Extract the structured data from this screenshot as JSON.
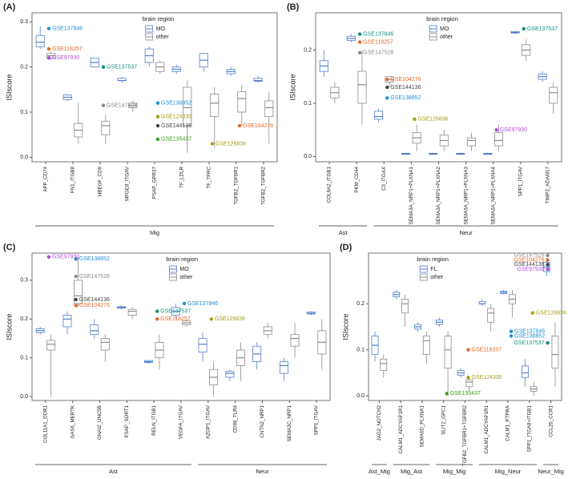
{
  "chart_data": [
    {
      "type": "box",
      "panel_label": "(A)",
      "y_label": "ISIscore",
      "legend_title": "brain region",
      "ylim": [
        -0.01,
        0.32
      ],
      "yticks": [
        {
          "value": 0,
          "label": "0.0"
        },
        0.1,
        0.2,
        0.3
      ],
      "categories": [
        "APP_CD74",
        "FN1_ITGB8",
        "HBEGF_CD9",
        "MFGE8_ITGAV",
        "PSAP_GPR37",
        "TF_LDLR",
        "TF_TFRC",
        "TGFB2_TGFBR1",
        "TGFB2_TGFBR2"
      ],
      "groups": [
        {
          "name": "Mig",
          "size": 9
        }
      ],
      "series": [
        {
          "name": "MO",
          "color": "#4f7fd0",
          "boxes": [
            [
              0.24,
              0.245,
              0.255,
              0.27,
              0.29
            ],
            [
              0.125,
              0.128,
              0.133,
              0.138,
              0.14
            ],
            [
              0.2,
              0.2,
              0.21,
              0.22,
              0.22
            ],
            [
              0.165,
              0.17,
              0.17,
              0.175,
              0.178
            ],
            [
              0.2,
              0.21,
              0.225,
              0.24,
              0.245
            ],
            [
              0.185,
              0.19,
              0.195,
              0.2,
              0.205
            ],
            [
              0.19,
              0.2,
              0.215,
              0.23,
              0.23
            ],
            [
              0.18,
              0.185,
              0.19,
              0.195,
              0.2
            ],
            [
              0.165,
              0.168,
              0.17,
              0.175,
              0.18
            ]
          ]
        },
        {
          "name": "other",
          "color": "#8c8c8c",
          "boxes": [
            [
              0.215,
              0.22,
              0.225,
              0.23,
              0.235
            ],
            [
              0.03,
              0.045,
              0.06,
              0.075,
              0.12
            ],
            [
              0.03,
              0.05,
              0.07,
              0.08,
              0.095
            ],
            [
              0.1,
              0.11,
              0.115,
              0.12,
              0.125
            ],
            [
              0.185,
              0.19,
              0.2,
              0.21,
              0.215
            ],
            [
              0.01,
              0.07,
              0.11,
              0.155,
              0.17
            ],
            [
              0.02,
              0.09,
              0.12,
              0.14,
              0.155
            ],
            [
              0.07,
              0.1,
              0.13,
              0.145,
              0.16
            ],
            [
              0.03,
              0.09,
              0.11,
              0.125,
              0.145
            ]
          ]
        }
      ],
      "annotations": [
        {
          "text": "GSE137846",
          "category": 0,
          "value": 0.285,
          "color": "#1f8fd6"
        },
        {
          "text": "GSE118257",
          "category": 0,
          "value": 0.24,
          "color": "#e8682a"
        },
        {
          "text": "GSE97930",
          "category": 0,
          "value": 0.22,
          "color": "#b04ee0"
        },
        {
          "text": "GSE137537",
          "category": 2,
          "value": 0.2,
          "color": "#13917e"
        },
        {
          "text": "GSE147528",
          "category": 2,
          "value": 0.115,
          "color": "#8a8a8a"
        },
        {
          "text": "GSE138852",
          "category": 4,
          "value": 0.12,
          "color": "#1f8fd6"
        },
        {
          "text": "GSE124335",
          "category": 4,
          "value": 0.09,
          "color": "#a3a01a"
        },
        {
          "text": "GSE144136",
          "category": 4,
          "value": 0.07,
          "color": "#444444"
        },
        {
          "text": "GSE135437",
          "category": 4,
          "value": 0.04,
          "color": "#3a9a1a"
        },
        {
          "text": "GSE104276",
          "category": 7,
          "value": 0.07,
          "color": "#e8682a"
        },
        {
          "text": "GSE126836",
          "category": 6,
          "value": 0.03,
          "color": "#a3a01a"
        }
      ]
    },
    {
      "type": "box",
      "panel_label": "(B)",
      "y_label": "ISIscore",
      "legend_title": "brain region",
      "ylim": [
        -0.01,
        0.27
      ],
      "yticks": [
        {
          "value": 0,
          "label": "0.0"
        },
        0.1,
        0.2
      ],
      "categories": [
        "COL9A2_ITGB1",
        "PKM_CD44",
        "C3_ITGAX",
        "SEMA3A_NRP1+PLXNA1",
        "SEMA3A_NRP1+PLXNA2",
        "SEMA3A_NRP1+PLXNA3",
        "SEMA3A_NRP1+PLXNA4",
        "SPP1_ITGAV",
        "TIMP3_ADAM17"
      ],
      "groups": [
        {
          "name": "Ast",
          "size": 2
        },
        {
          "name": "Neur",
          "size": 7
        }
      ],
      "series": [
        {
          "name": "MO",
          "color": "#4f7fd0",
          "boxes": [
            [
              0.15,
              0.16,
              0.17,
              0.18,
              0.2
            ],
            [
              0.215,
              0.218,
              0.222,
              0.226,
              0.23
            ],
            [
              0.065,
              0.07,
              0.075,
              0.085,
              0.09
            ],
            [
              0.003,
              0.004,
              0.005,
              0.006,
              0.007
            ],
            [
              0.003,
              0.004,
              0.005,
              0.006,
              0.007
            ],
            [
              0.003,
              0.004,
              0.005,
              0.006,
              0.007
            ],
            [
              0.003,
              0.004,
              0.005,
              0.006,
              0.007
            ],
            [
              0.23,
              0.232,
              0.233,
              0.235,
              0.236
            ],
            [
              0.14,
              0.145,
              0.15,
              0.155,
              0.16
            ]
          ]
        },
        {
          "name": "other",
          "color": "#8c8c8c",
          "boxes": [
            [
              0.1,
              0.11,
              0.12,
              0.13,
              0.14
            ],
            [
              0.06,
              0.1,
              0.135,
              0.16,
              0.2
            ],
            [
              0.13,
              0.14,
              0.145,
              0.15,
              0.15
            ],
            [
              0.01,
              0.025,
              0.035,
              0.045,
              0.06
            ],
            [
              0.01,
              0.02,
              0.03,
              0.04,
              0.05
            ],
            [
              0.01,
              0.02,
              0.03,
              0.035,
              0.045
            ],
            [
              0.01,
              0.02,
              0.03,
              0.045,
              0.06
            ],
            [
              0.18,
              0.19,
              0.2,
              0.21,
              0.22
            ],
            [
              0.08,
              0.1,
              0.12,
              0.13,
              0.14
            ]
          ]
        }
      ],
      "annotations": [
        {
          "text": "GSE137846",
          "category": 1,
          "value": 0.23,
          "color": "#13917e"
        },
        {
          "text": "GSE118257",
          "category": 1,
          "value": 0.215,
          "color": "#e8682a"
        },
        {
          "text": "GSE147528",
          "category": 1,
          "value": 0.195,
          "color": "#8a8a8a"
        },
        {
          "text": "GSE104276",
          "category": 2,
          "value": 0.145,
          "color": "#e8682a"
        },
        {
          "text": "GSE144136",
          "category": 2,
          "value": 0.13,
          "color": "#444444"
        },
        {
          "text": "GSE138852",
          "category": 2,
          "value": 0.11,
          "color": "#1f8fd6"
        },
        {
          "text": "GSE126836",
          "category": 3,
          "value": 0.07,
          "color": "#a3a01a"
        },
        {
          "text": "GSE137537",
          "category": 7,
          "value": 0.24,
          "color": "#13917e"
        },
        {
          "text": "GSE97930",
          "category": 6,
          "value": 0.05,
          "color": "#b04ee0"
        }
      ]
    },
    {
      "type": "box",
      "panel_label": "(C)",
      "y_label": "ISIscore",
      "legend_title": "brain region",
      "ylim": [
        -0.01,
        0.37
      ],
      "yticks": [
        {
          "value": 0,
          "label": "0.0"
        },
        0.1,
        0.2,
        0.3
      ],
      "categories": [
        "COL11A1_DDR1",
        "GAS6_MERTK",
        "GNAI2_UNC5B",
        "PSAP_SORT1",
        "RELN_ITGB1",
        "VEGFA_ITGAV",
        "AZGP1_ITGAV",
        "CD99_TLR4",
        "CNTN2_NRP1",
        "SEMA3C_NRP1",
        "SPP1_ITGAV"
      ],
      "groups": [
        {
          "name": "Ast",
          "size": 6
        },
        {
          "name": "Neur",
          "size": 5
        }
      ],
      "series": [
        {
          "name": "MO",
          "color": "#4f7fd0",
          "boxes": [
            [
              0.16,
              0.165,
              0.17,
              0.175,
              0.18
            ],
            [
              0.16,
              0.18,
              0.2,
              0.21,
              0.22
            ],
            [
              0.15,
              0.16,
              0.17,
              0.185,
              0.2
            ],
            [
              0.225,
              0.228,
              0.23,
              0.232,
              0.235
            ],
            [
              0.085,
              0.088,
              0.09,
              0.093,
              0.095
            ],
            [
              0.2,
              0.21,
              0.22,
              0.23,
              0.24
            ],
            [
              0.09,
              0.115,
              0.135,
              0.15,
              0.165
            ],
            [
              0.04,
              0.05,
              0.06,
              0.065,
              0.07
            ],
            [
              0.07,
              0.09,
              0.11,
              0.13,
              0.14
            ],
            [
              0.04,
              0.06,
              0.08,
              0.09,
              0.1
            ],
            [
              0.21,
              0.213,
              0.215,
              0.218,
              0.22
            ]
          ]
        },
        {
          "name": "other",
          "color": "#8c8c8c",
          "boxes": [
            [
              0,
              0.12,
              0.135,
              0.145,
              0.16
            ],
            [
              0.23,
              0.24,
              0.26,
              0.3,
              0.36
            ],
            [
              0.09,
              0.12,
              0.14,
              0.15,
              0.16
            ],
            [
              0.2,
              0.21,
              0.22,
              0.225,
              0.23
            ],
            [
              0.07,
              0.1,
              0.12,
              0.14,
              0.16
            ],
            [
              0.18,
              0.185,
              0.19,
              0.195,
              0.2
            ],
            [
              0,
              0.03,
              0.05,
              0.07,
              0.09
            ],
            [
              0.04,
              0.08,
              0.1,
              0.12,
              0.14
            ],
            [
              0.15,
              0.16,
              0.17,
              0.18,
              0.19
            ],
            [
              0.1,
              0.13,
              0.15,
              0.16,
              0.19
            ],
            [
              0.07,
              0.11,
              0.14,
              0.17,
              0.2
            ]
          ]
        }
      ],
      "annotations": [
        {
          "text": "GSE97930",
          "category": 0,
          "value": 0.36,
          "color": "#b04ee0"
        },
        {
          "text": "GSE138852",
          "category": 1,
          "value": 0.355,
          "color": "#1f8fd6"
        },
        {
          "text": "GSE147528",
          "category": 1,
          "value": 0.31,
          "color": "#8a8a8a"
        },
        {
          "text": "GSE144136",
          "category": 1,
          "value": 0.25,
          "color": "#444444"
        },
        {
          "text": "GSE104276",
          "category": 1,
          "value": 0.235,
          "color": "#e8682a"
        },
        {
          "text": "GSE137846",
          "category": 5,
          "value": 0.24,
          "color": "#1f8fd6"
        },
        {
          "text": "GSE137537",
          "category": 4,
          "value": 0.22,
          "color": "#13917e"
        },
        {
          "text": "GSE118257",
          "category": 4,
          "value": 0.2,
          "color": "#e8682a"
        },
        {
          "text": "GSE126836",
          "category": 6,
          "value": 0.2,
          "color": "#a3a01a"
        }
      ]
    },
    {
      "type": "box",
      "panel_label": "(D)",
      "y_label": "ISIscore",
      "legend_title": "brain region",
      "ylim": [
        -0.01,
        0.31
      ],
      "yticks": [
        {
          "value": 0,
          "label": "0.0"
        },
        0.1,
        0.2
      ],
      "categories": [
        "JAG2_NOTCH2",
        "CALM1_ADCYAP1R1",
        "SEMA6D_PLXNA1",
        "SLIT2_GPC1",
        "TGFB2_TGFBR1+TGFBR2",
        "CALM1_ADCYAP1R1",
        "CALM1_PTPRA",
        "SPP1_ITGA8+ITGB1",
        "CCL26_CCR1"
      ],
      "groups": [
        {
          "name": "Ast_Mig",
          "size": 1
        },
        {
          "name": "Mig_Ast",
          "size": 2
        },
        {
          "name": "Mig_Mig",
          "size": 2
        },
        {
          "name": "Mig_Neur",
          "size": 3
        },
        {
          "name": "Neur_Mig",
          "size": 1
        }
      ],
      "series": [
        {
          "name": "FL",
          "color": "#4f7fd0",
          "boxes": [
            [
              0.075,
              0.09,
              0.11,
              0.13,
              0.14
            ],
            [
              0.21,
              0.215,
              0.22,
              0.225,
              0.23
            ],
            [
              0.14,
              0.145,
              0.15,
              0.155,
              0.16
            ],
            [
              0.15,
              0.155,
              0.16,
              0.165,
              0.17
            ],
            [
              0.04,
              0.045,
              0.05,
              0.055,
              0.06
            ],
            [
              0.195,
              0.2,
              0.2,
              0.205,
              0.21
            ],
            [
              0.22,
              0.222,
              0.225,
              0.227,
              0.23
            ],
            [
              0.02,
              0.04,
              0.05,
              0.065,
              0.08
            ],
            [
              0.26,
              0.27,
              0.28,
              0.29,
              0.3
            ]
          ]
        },
        {
          "name": "other",
          "color": "#8c8c8c",
          "boxes": [
            [
              0.04,
              0.055,
              0.07,
              0.08,
              0.09
            ],
            [
              0.15,
              0.18,
              0.2,
              0.21,
              0.22
            ],
            [
              0.07,
              0.09,
              0.12,
              0.13,
              0.14
            ],
            [
              0,
              0.06,
              0.1,
              0.13,
              0.14
            ],
            [
              0.01,
              0.02,
              0.03,
              0.035,
              0.04
            ],
            [
              0.14,
              0.16,
              0.18,
              0.19,
              0.2
            ],
            [
              0.17,
              0.2,
              0.21,
              0.22,
              0.23
            ],
            [
              0,
              0.01,
              0.015,
              0.02,
              0.03
            ],
            [
              0.02,
              0.06,
              0.09,
              0.13,
              0.16
            ]
          ]
        }
      ],
      "annotations": [
        {
          "text": "GSE147528",
          "category": 8,
          "value": 0.305,
          "color": "#8a8a8a"
        },
        {
          "text": "GSE104276",
          "category": 8,
          "value": 0.295,
          "color": "#e8682a"
        },
        {
          "text": "GSE144136",
          "category": 8,
          "value": 0.285,
          "color": "#444444"
        },
        {
          "text": "GSE97930",
          "category": 8,
          "value": 0.275,
          "color": "#b04ee0"
        },
        {
          "text": "GSE126836",
          "category": 7,
          "value": 0.18,
          "color": "#a3a01a"
        },
        {
          "text": "GSE137846",
          "category": 6,
          "value": 0.14,
          "color": "#1f8fd6"
        },
        {
          "text": "GSE138852",
          "category": 6,
          "value": 0.13,
          "color": "#1f8fd6"
        },
        {
          "text": "GSE137537",
          "category": 8,
          "value": 0.115,
          "color": "#13917e"
        },
        {
          "text": "GSE118257",
          "category": 4,
          "value": 0.1,
          "color": "#e8682a"
        },
        {
          "text": "GSE124335",
          "category": 4,
          "value": 0.04,
          "color": "#a3a01a"
        },
        {
          "text": "GSE135437",
          "category": 3,
          "value": 0.005,
          "color": "#3a9a1a"
        }
      ]
    }
  ]
}
